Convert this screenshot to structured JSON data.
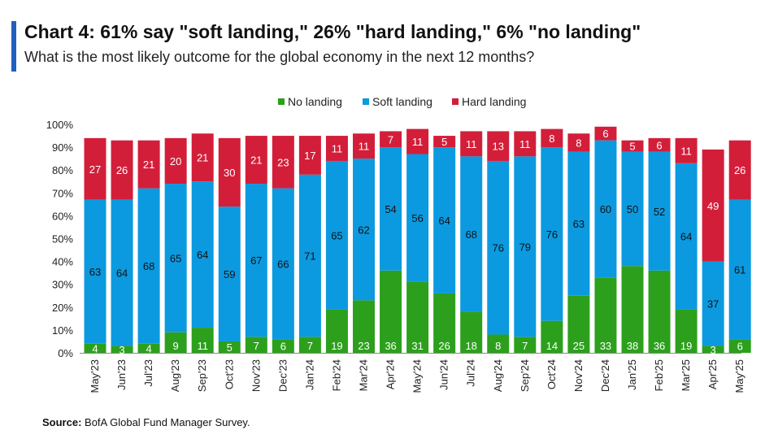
{
  "title": "Chart 4: 61% say \"soft landing,\" 26% \"hard landing,\" 6% \"no landing\"",
  "subtitle": "What is the most likely outcome for the global economy in the next 12 months?",
  "source_label": "Source:",
  "source_text": "BofA Global Fund Manager Survey.",
  "chart_data": {
    "type": "bar",
    "stacked": true,
    "categories": [
      "May'23",
      "Jun'23",
      "Jul'23",
      "Aug'23",
      "Sep'23",
      "Oct'23",
      "Nov'23",
      "Dec'23",
      "Jan'24",
      "Feb'24",
      "Mar'24",
      "Apr'24",
      "May'24",
      "Jun'24",
      "Jul'24",
      "Aug'24",
      "Sep'24",
      "Oct'24",
      "Nov'24",
      "Dec'24",
      "Jan'25",
      "Feb'25",
      "Mar'25",
      "Apr'25",
      "May'25"
    ],
    "series": [
      {
        "name": "No landing",
        "color": "#2ca01c",
        "label_color": "#ffffff",
        "values": [
          4,
          3,
          4,
          9,
          11,
          5,
          7,
          6,
          7,
          19,
          23,
          36,
          31,
          26,
          18,
          8,
          7,
          14,
          25,
          33,
          38,
          36,
          19,
          3,
          6
        ]
      },
      {
        "name": "Soft landing",
        "color": "#0b9ae0",
        "label_color": "#111111",
        "values": [
          63,
          64,
          68,
          65,
          64,
          59,
          67,
          66,
          71,
          65,
          62,
          54,
          56,
          64,
          68,
          76,
          79,
          76,
          63,
          60,
          50,
          52,
          64,
          37,
          61
        ]
      },
      {
        "name": "Hard landing",
        "color": "#d31e3a",
        "label_color": "#ffffff",
        "values": [
          27,
          26,
          21,
          20,
          21,
          30,
          21,
          23,
          17,
          11,
          11,
          7,
          11,
          5,
          11,
          13,
          11,
          8,
          8,
          6,
          5,
          6,
          11,
          49,
          26
        ]
      }
    ],
    "yticks": [
      "0%",
      "10%",
      "20%",
      "30%",
      "40%",
      "50%",
      "60%",
      "70%",
      "80%",
      "90%",
      "100%"
    ],
    "ylim": [
      0,
      100
    ],
    "legend_position": "top-center",
    "grid": false
  }
}
